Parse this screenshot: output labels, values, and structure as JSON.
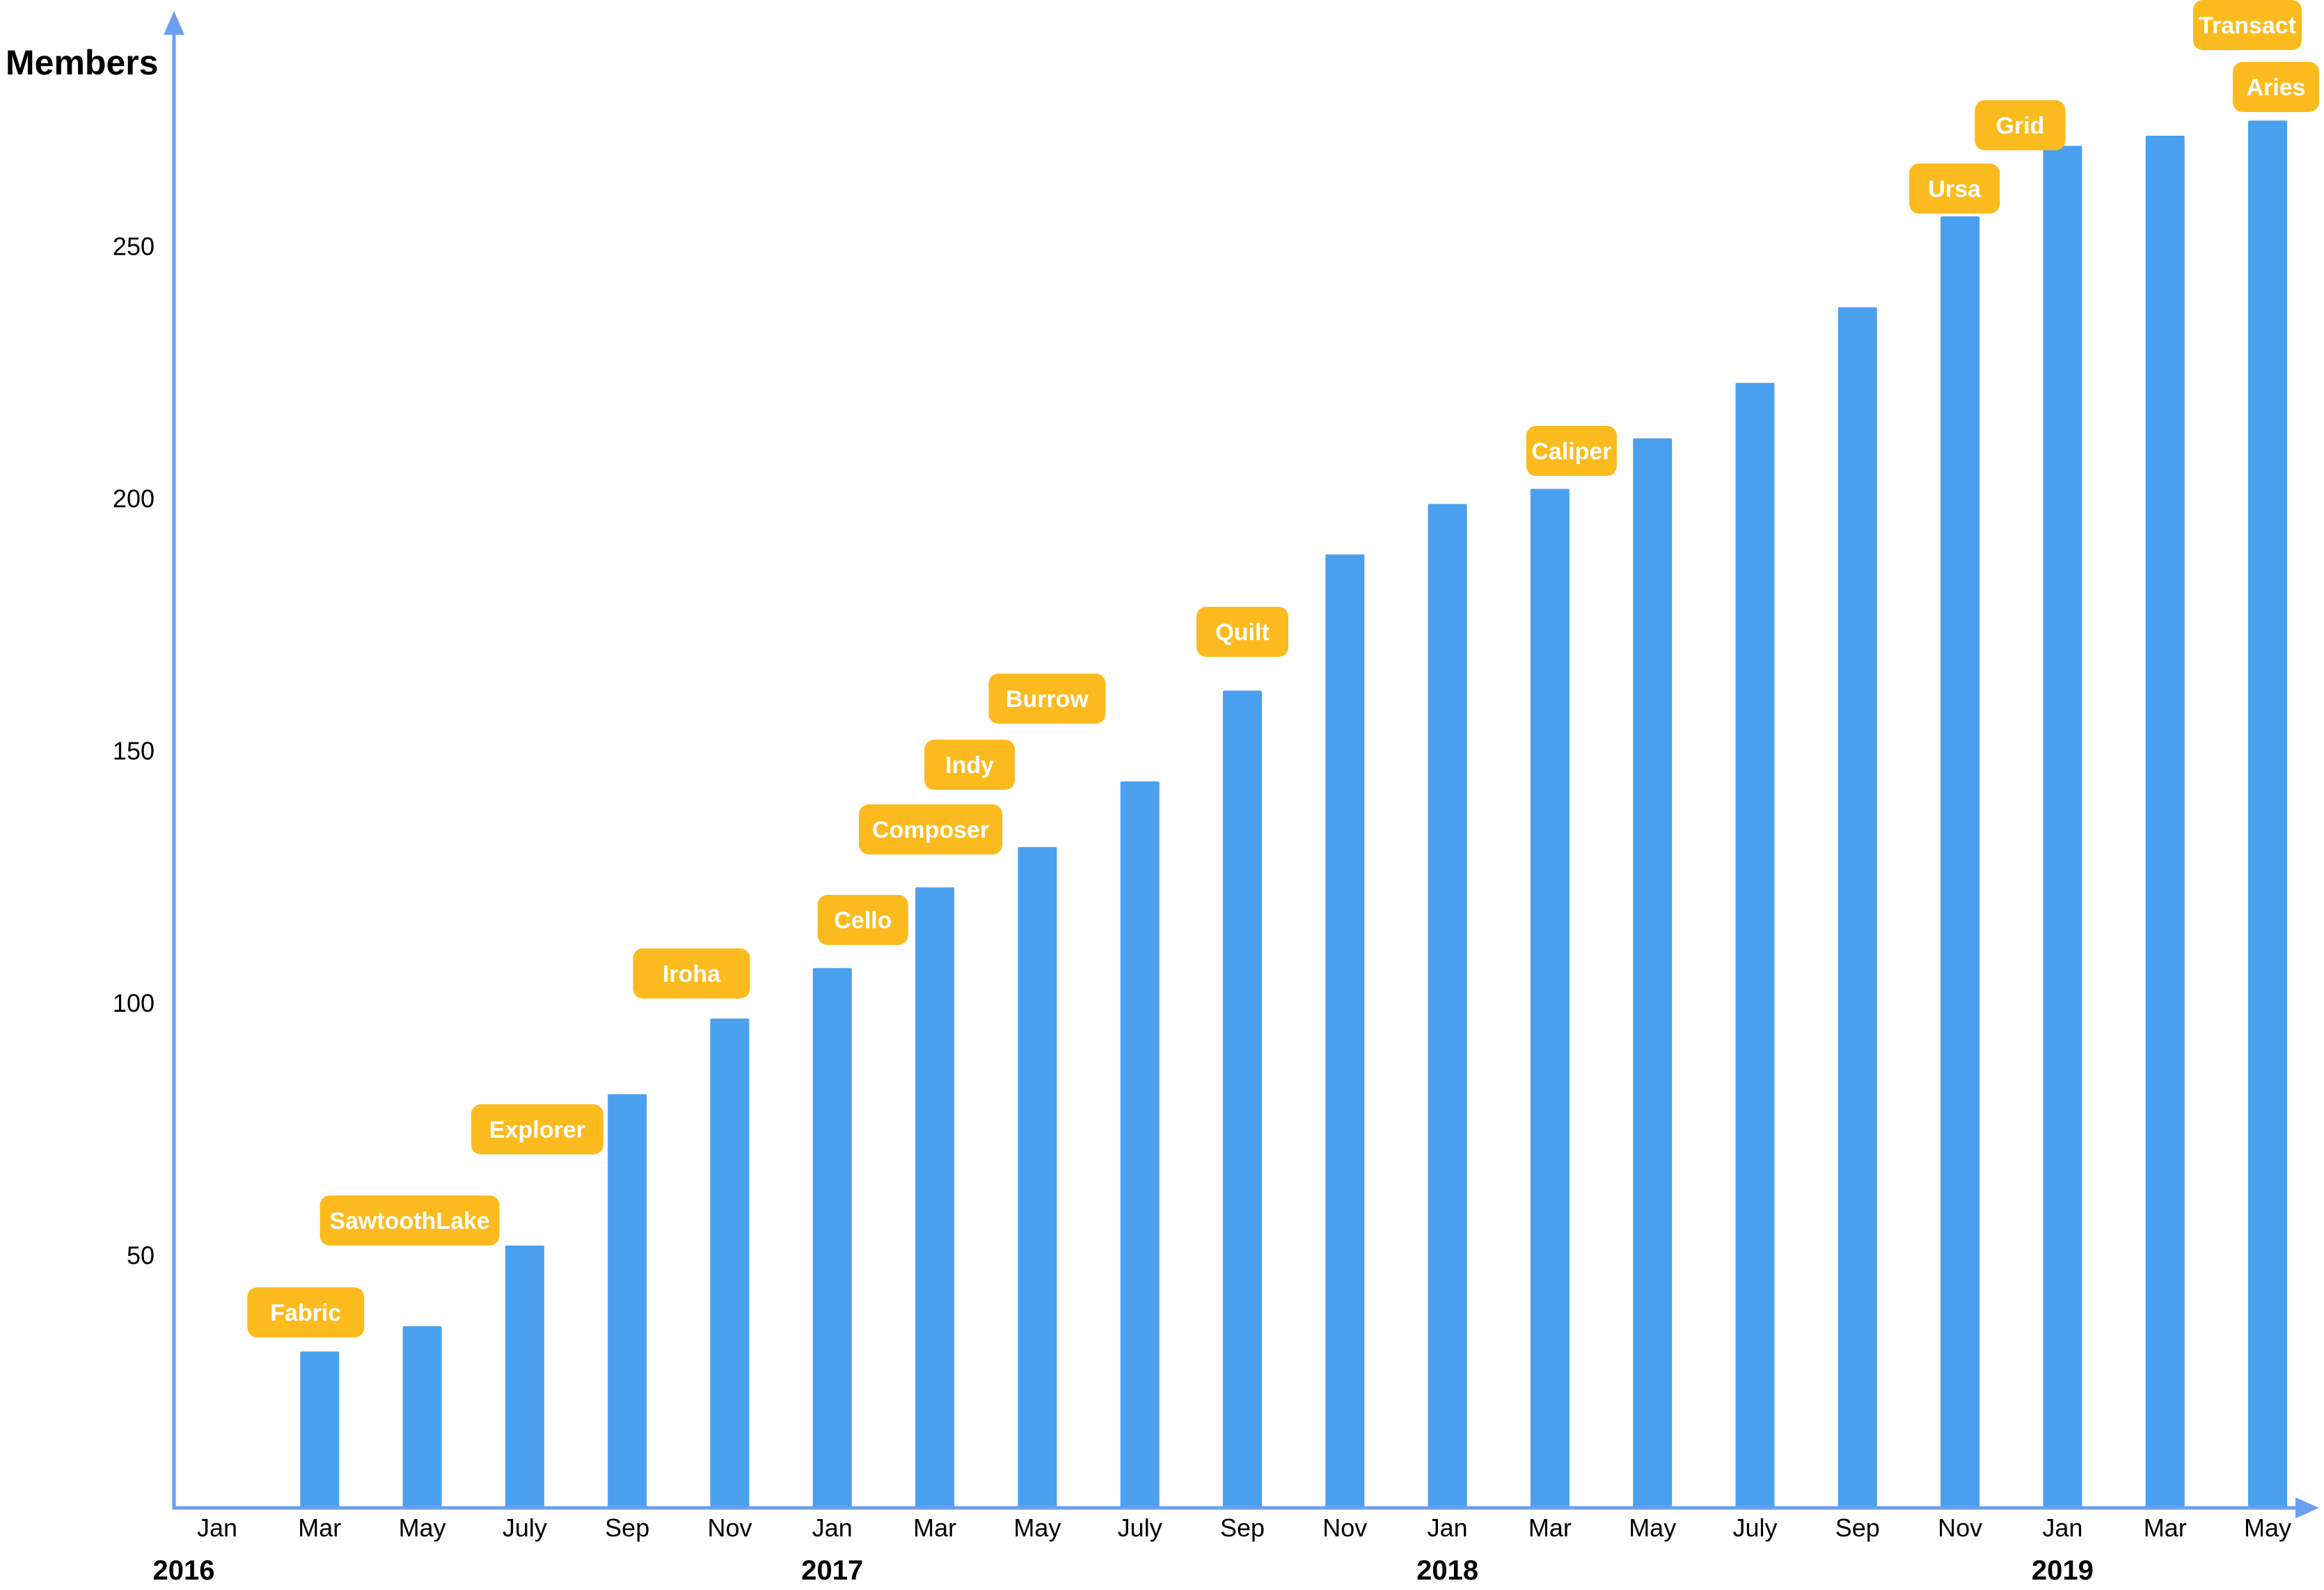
{
  "colors": {
    "axis": "#6b9ff0",
    "bar": "#4aa0ef",
    "label_bg": "#fbbb1e",
    "label_text": "#ffffff",
    "text": "#000000"
  },
  "chart_data": {
    "type": "bar",
    "ylabel": "Members",
    "xlabel": "",
    "ylim": [
      0,
      290
    ],
    "y_ticks": [
      50,
      100,
      150,
      200,
      250
    ],
    "grid": false,
    "categories": [
      "Jan",
      "Mar",
      "May",
      "July",
      "Sep",
      "Nov",
      "Jan",
      "Mar",
      "May",
      "July",
      "Sep",
      "Nov",
      "Jan",
      "Mar",
      "May",
      "July",
      "Sep",
      "Nov",
      "Jan",
      "Mar",
      "May"
    ],
    "values": [
      0,
      31,
      36,
      52,
      82,
      97,
      107,
      123,
      131,
      144,
      162,
      189,
      199,
      202,
      212,
      223,
      238,
      256,
      270,
      272,
      275
    ],
    "years": [
      {
        "label": "2016",
        "category_index": 0
      },
      {
        "label": "2017",
        "category_index": 6
      },
      {
        "label": "2018",
        "category_index": 12
      },
      {
        "label": "2019",
        "category_index": 18
      }
    ],
    "annotations": [
      {
        "text": "Fabric",
        "category_index": 1
      },
      {
        "text": "SawtoothLake",
        "category_index": 2
      },
      {
        "text": "Explorer",
        "category_index": 3
      },
      {
        "text": "Iroha",
        "category_index": 5
      },
      {
        "text": "Cello",
        "category_index": 6
      },
      {
        "text": "Composer",
        "category_index": 7
      },
      {
        "text": "Indy",
        "category_index": 7
      },
      {
        "text": "Burrow",
        "category_index": 8
      },
      {
        "text": "Quilt",
        "category_index": 10
      },
      {
        "text": "Caliper",
        "category_index": 13
      },
      {
        "text": "Ursa",
        "category_index": 17
      },
      {
        "text": "Grid",
        "category_index": 18
      },
      {
        "text": "Transact",
        "category_index": 20
      },
      {
        "text": "Aries",
        "category_index": 20
      }
    ]
  }
}
